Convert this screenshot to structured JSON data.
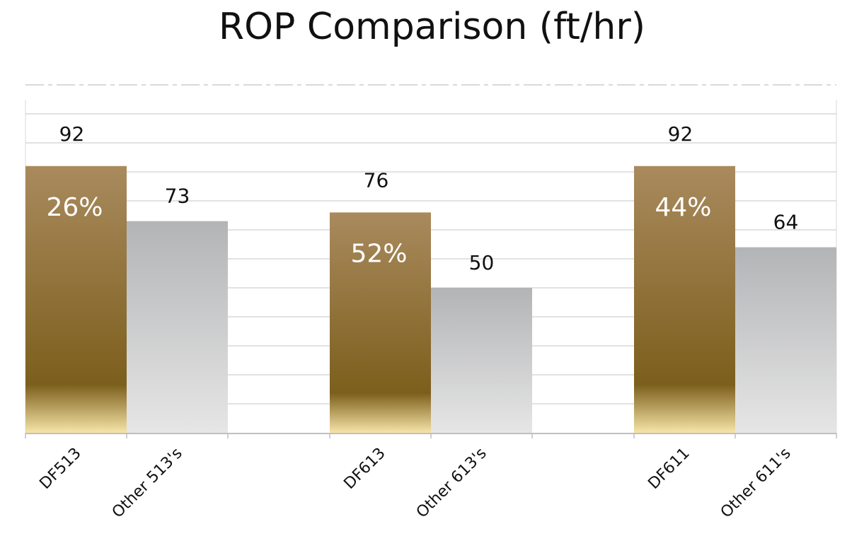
{
  "chart_data": {
    "type": "bar",
    "title": "ROP Comparison (ft/hr)",
    "xlabel": "",
    "ylabel": "",
    "ylim": [
      0,
      110
    ],
    "grid": true,
    "legend": "none",
    "categories": [
      "DF513",
      "Other 513's",
      "DF613",
      "Other 613's",
      "DF611",
      "Other 611's"
    ],
    "groups": [
      {
        "bars": [
          {
            "label": "DF513",
            "value": 92,
            "kind": "DF",
            "improvement": "26%"
          },
          {
            "label": "Other 513's",
            "value": 73,
            "kind": "Other"
          }
        ]
      },
      {
        "bars": [
          {
            "label": "DF613",
            "value": 76,
            "kind": "DF",
            "improvement": "52%"
          },
          {
            "label": "Other 613's",
            "value": 50,
            "kind": "Other"
          }
        ]
      },
      {
        "bars": [
          {
            "label": "DF611",
            "value": 92,
            "kind": "DF",
            "improvement": "44%"
          },
          {
            "label": "Other 611's",
            "value": 64,
            "kind": "Other"
          }
        ]
      }
    ],
    "colors": {
      "df_top": "#a98a5e",
      "df_mid": "#7c5f1c",
      "df_bottom": "#f6e4a8",
      "other_top": "#b3b4b6",
      "other_bottom": "#e6e6e6",
      "grid": "#d9d9d9",
      "axis": "#bfbfbf",
      "text": "#111111",
      "improvement_text": "#ffffff"
    }
  }
}
